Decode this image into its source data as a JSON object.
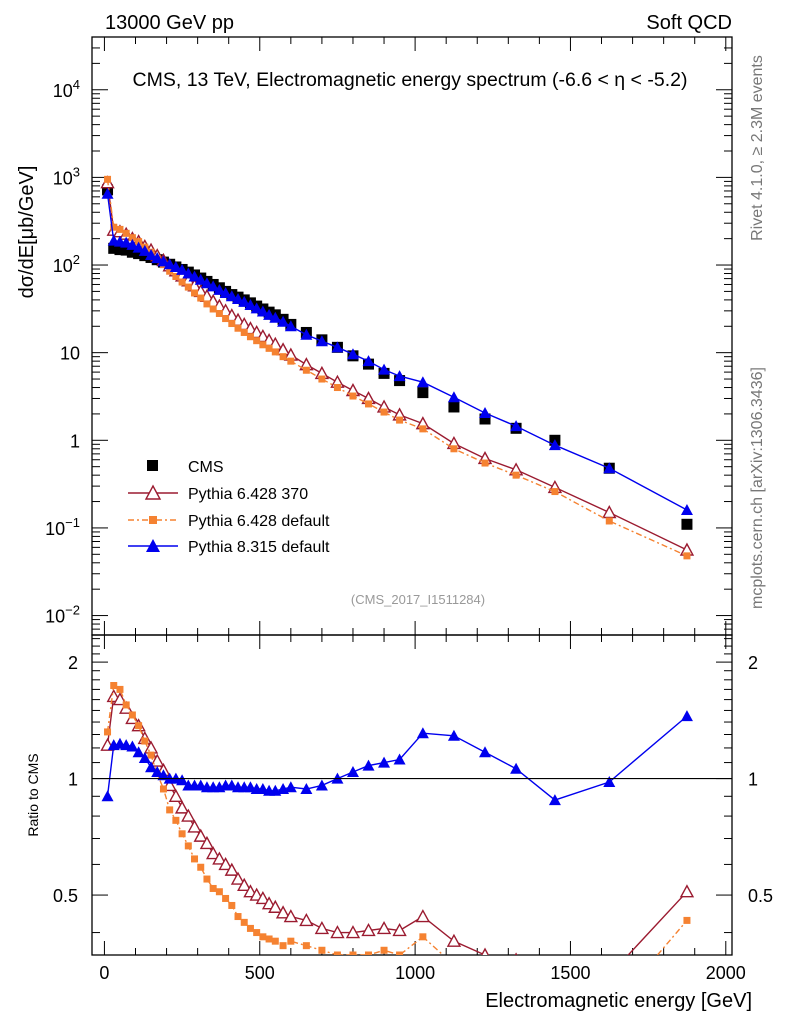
{
  "header": {
    "left": "13000 GeV pp",
    "right": "Soft QCD",
    "title": "CMS, 13 TeV, Electromagnetic energy spectrum (-6.6 < η < -5.2)",
    "side_top": "Rivet 4.1.0, ≥ 2.3M events",
    "side_bottom": "mcplots.cern.ch [arXiv:1306.3436]",
    "analysis_tag": "(CMS_2017_I1511284)"
  },
  "axes": {
    "ylabel_main": "dσ/dE[μb/GeV]",
    "ylabel_ratio": "Ratio to CMS",
    "xlabel": "Electromagnetic energy [GeV]",
    "x_ticks": [
      "0",
      "500",
      "1000",
      "1500",
      "2000"
    ],
    "y_main_ticks": [
      {
        "v": 10000,
        "mant": "10",
        "exp": "4"
      },
      {
        "v": 1000,
        "mant": "10",
        "exp": "3"
      },
      {
        "v": 100,
        "mant": "10",
        "exp": "2"
      },
      {
        "v": 10,
        "mant": "10",
        "exp": ""
      },
      {
        "v": 1,
        "mant": "1",
        "exp": ""
      },
      {
        "v": 0.1,
        "mant": "10",
        "exp": "−1"
      },
      {
        "v": 0.01,
        "mant": "10",
        "exp": "−2"
      }
    ],
    "y_ratio_ticks": [
      "2",
      "1",
      "0.5"
    ]
  },
  "chart_data": {
    "type": "scatter",
    "xlim": [
      -40,
      2020
    ],
    "ylim_main": [
      0.006,
      40000
    ],
    "ylim_ratio": [
      0.35,
      2.35
    ],
    "legend": [
      "CMS",
      "Pythia 6.428 370",
      "Pythia 6.428 default",
      "Pythia 8.315 default"
    ],
    "series": [
      {
        "name": "CMS",
        "color": "#000000",
        "x": [
          10,
          30,
          50,
          70,
          90,
          110,
          130,
          150,
          170,
          190,
          210,
          230,
          250,
          270,
          290,
          310,
          330,
          350,
          370,
          390,
          410,
          430,
          450,
          470,
          490,
          510,
          530,
          550,
          575,
          600,
          650,
          700,
          750,
          800,
          850,
          900,
          950,
          1025,
          1125,
          1225,
          1325,
          1450,
          1625,
          1875
        ],
        "y": [
          720,
          155,
          150,
          148,
          140,
          135,
          128,
          122,
          115,
          108,
          102,
          95,
          89,
          83,
          77,
          71,
          65,
          60,
          55,
          50,
          46,
          43,
          40,
          37,
          34,
          31.5,
          29,
          27,
          24,
          21,
          17,
          14,
          11.5,
          9.2,
          7.4,
          5.8,
          4.8,
          3.5,
          2.4,
          1.75,
          1.37,
          1.0,
          0.48,
          0.11
        ]
      },
      {
        "name": "Pythia 6.428 370",
        "color": "#9b1b30",
        "x": [
          10,
          30,
          50,
          70,
          90,
          110,
          130,
          150,
          170,
          190,
          210,
          230,
          250,
          270,
          290,
          310,
          330,
          350,
          370,
          390,
          410,
          430,
          450,
          470,
          490,
          510,
          530,
          550,
          575,
          600,
          650,
          700,
          750,
          800,
          850,
          900,
          950,
          1025,
          1125,
          1225,
          1325,
          1450,
          1625,
          1875
        ],
        "y": [
          870,
          250,
          240,
          225,
          200,
          185,
          163,
          148,
          128,
          113,
          98,
          86,
          75,
          66,
          58,
          50,
          44,
          38.5,
          34,
          30,
          26.5,
          23.5,
          21,
          18.8,
          17,
          15.3,
          13.8,
          12.5,
          10.8,
          9.4,
          7.3,
          5.8,
          4.6,
          3.7,
          3.0,
          2.4,
          1.95,
          1.55,
          0.92,
          0.62,
          0.46,
          0.29,
          0.15,
          0.056
        ]
      },
      {
        "name": "Pythia 6.428 default",
        "color": "#f58231",
        "x": [
          10,
          30,
          50,
          70,
          90,
          110,
          130,
          150,
          170,
          190,
          210,
          230,
          250,
          270,
          290,
          310,
          330,
          350,
          370,
          390,
          410,
          430,
          450,
          470,
          490,
          510,
          530,
          550,
          575,
          600,
          650,
          700,
          750,
          800,
          850,
          900,
          950,
          1025,
          1125,
          1225,
          1325,
          1450,
          1625,
          1875
        ],
        "y": [
          950,
          270,
          255,
          230,
          205,
          185,
          160,
          140,
          118,
          101,
          85,
          74,
          64,
          56,
          48,
          42,
          36,
          31.5,
          28,
          24.5,
          21.5,
          19,
          17,
          15.2,
          13.7,
          12.3,
          11.2,
          10.2,
          9.0,
          8.0,
          6.3,
          5.0,
          4.0,
          3.2,
          2.6,
          2.1,
          1.7,
          1.35,
          0.8,
          0.55,
          0.4,
          0.26,
          0.12,
          0.048
        ]
      },
      {
        "name": "Pythia 8.315 default",
        "color": "#0000ee",
        "x": [
          10,
          30,
          50,
          70,
          90,
          110,
          130,
          150,
          170,
          190,
          210,
          230,
          250,
          270,
          290,
          310,
          330,
          350,
          370,
          390,
          410,
          430,
          450,
          470,
          490,
          510,
          530,
          550,
          575,
          600,
          650,
          700,
          750,
          800,
          850,
          900,
          950,
          1025,
          1125,
          1225,
          1325,
          1450,
          1625,
          1875
        ],
        "y": [
          650,
          190,
          185,
          180,
          170,
          158,
          145,
          130,
          120,
          110,
          102,
          95,
          88,
          80,
          74,
          68,
          62,
          57,
          52,
          48,
          44,
          41,
          38,
          35,
          32,
          29.5,
          27,
          25,
          22.5,
          20,
          16,
          13.5,
          11.5,
          9.6,
          8.0,
          6.4,
          5.4,
          4.6,
          3.1,
          2.05,
          1.45,
          0.88,
          0.48,
          0.16
        ]
      }
    ],
    "ratio": [
      {
        "name": "Pythia 6.428 370",
        "y": [
          1.22,
          1.63,
          1.6,
          1.52,
          1.43,
          1.37,
          1.27,
          1.2,
          1.11,
          1.05,
          0.96,
          0.9,
          0.84,
          0.8,
          0.75,
          0.71,
          0.68,
          0.64,
          0.62,
          0.6,
          0.58,
          0.55,
          0.53,
          0.51,
          0.5,
          0.49,
          0.475,
          0.465,
          0.45,
          0.44,
          0.43,
          0.41,
          0.4,
          0.4,
          0.405,
          0.41,
          0.405,
          0.44,
          0.38,
          0.35,
          0.34,
          0.29,
          0.31,
          0.51
        ]
      },
      {
        "name": "Pythia 6.428 default",
        "y": [
          1.32,
          1.74,
          1.7,
          1.55,
          1.46,
          1.37,
          1.25,
          1.15,
          1.03,
          0.94,
          0.83,
          0.78,
          0.72,
          0.67,
          0.62,
          0.59,
          0.55,
          0.52,
          0.51,
          0.49,
          0.47,
          0.44,
          0.425,
          0.41,
          0.4,
          0.39,
          0.385,
          0.38,
          0.37,
          0.38,
          0.37,
          0.36,
          0.35,
          0.35,
          0.35,
          0.36,
          0.35,
          0.39,
          0.33,
          0.31,
          0.29,
          0.26,
          0.25,
          0.43
        ]
      },
      {
        "name": "Pythia 8.315 default",
        "y": [
          0.9,
          1.22,
          1.23,
          1.22,
          1.21,
          1.17,
          1.13,
          1.07,
          1.04,
          1.02,
          1.0,
          1.0,
          0.99,
          0.96,
          0.96,
          0.96,
          0.95,
          0.95,
          0.95,
          0.96,
          0.96,
          0.95,
          0.95,
          0.95,
          0.94,
          0.94,
          0.93,
          0.93,
          0.94,
          0.95,
          0.94,
          0.96,
          1.0,
          1.04,
          1.08,
          1.1,
          1.12,
          1.31,
          1.29,
          1.17,
          1.06,
          0.88,
          0.98,
          1.45
        ]
      }
    ]
  }
}
